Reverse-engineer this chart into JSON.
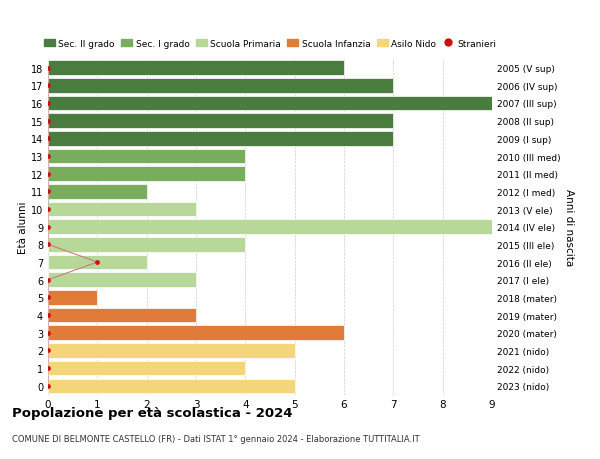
{
  "ages": [
    18,
    17,
    16,
    15,
    14,
    13,
    12,
    11,
    10,
    9,
    8,
    7,
    6,
    5,
    4,
    3,
    2,
    1,
    0
  ],
  "years": [
    "2005 (V sup)",
    "2006 (IV sup)",
    "2007 (III sup)",
    "2008 (II sup)",
    "2009 (I sup)",
    "2010 (III med)",
    "2011 (II med)",
    "2012 (I med)",
    "2013 (V ele)",
    "2014 (IV ele)",
    "2015 (III ele)",
    "2016 (II ele)",
    "2017 (I ele)",
    "2018 (mater)",
    "2019 (mater)",
    "2020 (mater)",
    "2021 (nido)",
    "2022 (nido)",
    "2023 (nido)"
  ],
  "values": [
    6,
    7,
    9,
    7,
    7,
    4,
    4,
    2,
    3,
    9,
    4,
    2,
    3,
    1,
    3,
    6,
    5,
    4,
    5
  ],
  "stranieri_vals": [
    0,
    0,
    0,
    0,
    0,
    0,
    0,
    0,
    0,
    0,
    0,
    1,
    0,
    0,
    0,
    0,
    0,
    0,
    0
  ],
  "bar_colors_by_age": {
    "18": "#4a7c3f",
    "17": "#4a7c3f",
    "16": "#4a7c3f",
    "15": "#4a7c3f",
    "14": "#4a7c3f",
    "13": "#7aac5e",
    "12": "#7aac5e",
    "11": "#7aac5e",
    "10": "#b8d89a",
    "9": "#b8d89a",
    "8": "#b8d89a",
    "7": "#b8d89a",
    "6": "#b8d89a",
    "5": "#e07b3a",
    "4": "#e07b3a",
    "3": "#e07b3a",
    "2": "#f5d57a",
    "1": "#f5d57a",
    "0": "#f5d57a"
  },
  "legend_categories": [
    "Sec. II grado",
    "Sec. I grado",
    "Scuola Primaria",
    "Scuola Infanzia",
    "Asilo Nido",
    "Stranieri"
  ],
  "legend_colors": [
    "#4a7c3f",
    "#7aac5e",
    "#b8d89a",
    "#e07b3a",
    "#f5d57a",
    "#cc1111"
  ],
  "stranieri_dot_color": "#cc1111",
  "stranieri_line_color": "#c08080",
  "title": "Popolazione per età scolastica - 2024",
  "subtitle": "COMUNE DI BELMONTE CASTELLO (FR) - Dati ISTAT 1° gennaio 2024 - Elaborazione TUTTITALIA.IT",
  "ylabel": "Età alunni",
  "right_label": "Anni di nascita",
  "xlim": [
    0,
    9
  ],
  "background_color": "#ffffff",
  "grid_color": "#cccccc"
}
